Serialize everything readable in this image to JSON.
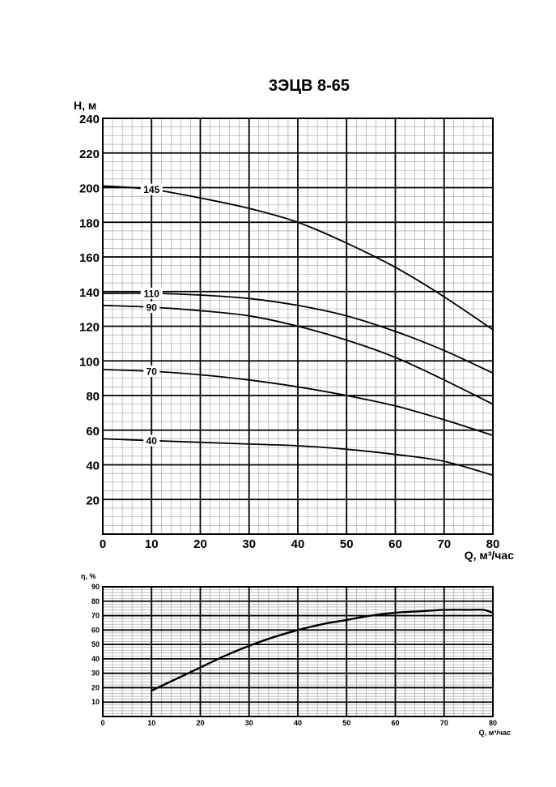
{
  "chart_data": [
    {
      "type": "line",
      "title": "3ЭЦВ 8-65",
      "xlabel": "Q, м³/час",
      "ylabel": "H, м",
      "xlim": [
        0,
        80
      ],
      "ylim": [
        0,
        240
      ],
      "xticks": [
        "0",
        "10",
        "20",
        "30",
        "40",
        "50",
        "60",
        "70",
        "80"
      ],
      "yticks": [
        "20",
        "40",
        "60",
        "80",
        "100",
        "120",
        "140",
        "160",
        "180",
        "200",
        "220",
        "240"
      ],
      "grid": true,
      "series": [
        {
          "name": "145",
          "label_at": 10,
          "points": [
            [
              0,
              201
            ],
            [
              10,
              199
            ],
            [
              20,
              194
            ],
            [
              30,
              188
            ],
            [
              40,
              180
            ],
            [
              50,
              168
            ],
            [
              60,
              154
            ],
            [
              70,
              137
            ],
            [
              80,
              118
            ]
          ]
        },
        {
          "name": "110",
          "label_at": 10,
          "points": [
            [
              0,
              139
            ],
            [
              10,
              139
            ],
            [
              20,
              138
            ],
            [
              30,
              136
            ],
            [
              40,
              132
            ],
            [
              50,
              126
            ],
            [
              60,
              117
            ],
            [
              70,
              106
            ],
            [
              80,
              93
            ]
          ]
        },
        {
          "name": "90",
          "label_at": 10,
          "points": [
            [
              0,
              132
            ],
            [
              10,
              131
            ],
            [
              20,
              129
            ],
            [
              30,
              126
            ],
            [
              40,
              120
            ],
            [
              50,
              112
            ],
            [
              60,
              102
            ],
            [
              70,
              89
            ],
            [
              80,
              75
            ]
          ]
        },
        {
          "name": "70",
          "label_at": 10,
          "points": [
            [
              0,
              95
            ],
            [
              10,
              94
            ],
            [
              20,
              92
            ],
            [
              30,
              89
            ],
            [
              40,
              85
            ],
            [
              50,
              80
            ],
            [
              60,
              74
            ],
            [
              70,
              66
            ],
            [
              80,
              57
            ]
          ]
        },
        {
          "name": "40",
          "label_at": 10,
          "points": [
            [
              0,
              55
            ],
            [
              10,
              54
            ],
            [
              20,
              53
            ],
            [
              30,
              52
            ],
            [
              40,
              51
            ],
            [
              50,
              49
            ],
            [
              60,
              46
            ],
            [
              70,
              42
            ],
            [
              80,
              34
            ]
          ]
        }
      ]
    },
    {
      "type": "line",
      "title": "",
      "xlabel": "Q, м³/час",
      "ylabel": "η, %",
      "xlim": [
        0,
        80
      ],
      "ylim": [
        0,
        90
      ],
      "xticks": [
        "0",
        "10",
        "20",
        "30",
        "40",
        "50",
        "60",
        "70",
        "80"
      ],
      "yticks": [
        "10",
        "20",
        "30",
        "40",
        "50",
        "60",
        "70",
        "80",
        "90"
      ],
      "grid": true,
      "series": [
        {
          "name": "",
          "points": [
            [
              10,
              18
            ],
            [
              15,
              26
            ],
            [
              20,
              34
            ],
            [
              25,
              42
            ],
            [
              30,
              49
            ],
            [
              35,
              55
            ],
            [
              40,
              60
            ],
            [
              45,
              64
            ],
            [
              50,
              67
            ],
            [
              55,
              70
            ],
            [
              60,
              72
            ],
            [
              65,
              73
            ],
            [
              70,
              74
            ],
            [
              75,
              74
            ],
            [
              78,
              74
            ],
            [
              80,
              72
            ]
          ]
        }
      ]
    }
  ]
}
